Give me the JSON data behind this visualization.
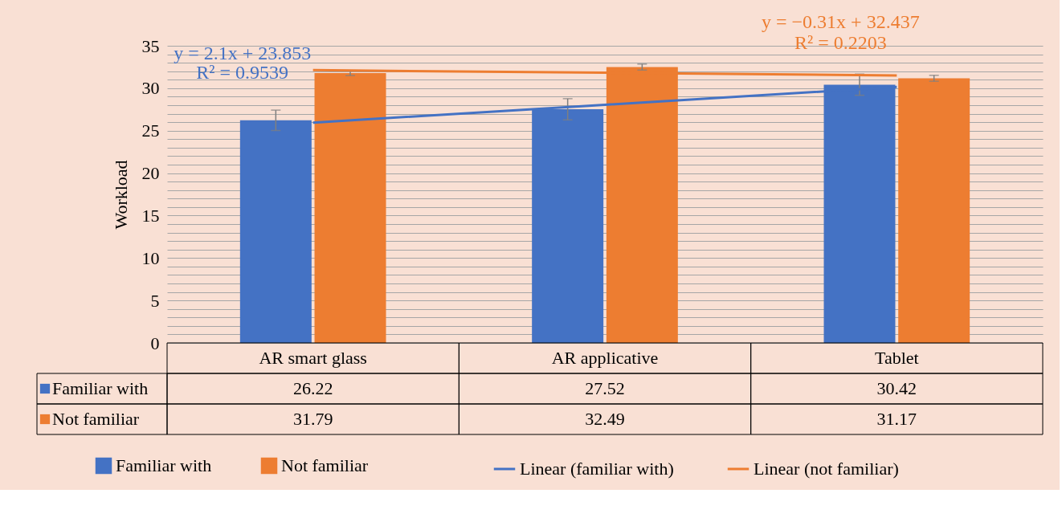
{
  "chart_data": {
    "type": "bar",
    "ylabel": "Workload",
    "categories": [
      "AR smart glass",
      "AR applicative",
      "Tablet"
    ],
    "series": [
      {
        "name": "Familiar with",
        "color": "#4472c4",
        "values": [
          26.22,
          27.52,
          30.42
        ],
        "errors": [
          1.2,
          1.25,
          1.25
        ],
        "value_labels": [
          "26.22",
          "27.52",
          "30.42"
        ]
      },
      {
        "name": "Not familiar",
        "color": "#ed7d31",
        "values": [
          31.79,
          32.49,
          31.17
        ],
        "errors": [
          0.3,
          0.35,
          0.35
        ],
        "value_labels": [
          "31.79",
          "32.49",
          "31.17"
        ]
      },
      {
        "name": "Linear (familiar with)",
        "type": "line",
        "color": "#4472c4",
        "values": [
          25.95,
          28.05,
          30.15
        ]
      },
      {
        "name": "Linear (not familiar)",
        "type": "line",
        "color": "#ed7d31",
        "values": [
          32.13,
          31.82,
          31.51
        ]
      }
    ],
    "ylim": [
      0,
      35
    ],
    "yticks": [
      0,
      {
        "value": 1,
        "label": null
      },
      {
        "value": 2,
        "label": null
      },
      {
        "value": 3,
        "label": null
      },
      {
        "value": 4,
        "label": null
      },
      5,
      {
        "value": 6,
        "label": null
      },
      {
        "value": 7,
        "label": null
      },
      {
        "value": 8,
        "label": null
      },
      {
        "value": 9,
        "label": null
      },
      10,
      {
        "value": 11,
        "label": null
      },
      {
        "value": 12,
        "label": null
      },
      {
        "value": 13,
        "label": null
      },
      {
        "value": 14,
        "label": null
      },
      15,
      {
        "value": 16,
        "label": null
      },
      {
        "value": 17,
        "label": null
      },
      {
        "value": 18,
        "label": null
      },
      {
        "value": 19,
        "label": null
      },
      20,
      {
        "value": 21,
        "label": null
      },
      {
        "value": 22,
        "label": null
      },
      {
        "value": 23,
        "label": null
      },
      {
        "value": 24,
        "label": null
      },
      25,
      {
        "value": 26,
        "label": null
      },
      {
        "value": 27,
        "label": null
      },
      {
        "value": 28,
        "label": null
      },
      {
        "value": 29,
        "label": null
      },
      30,
      {
        "value": 31,
        "label": null
      },
      {
        "value": 32,
        "label": null
      },
      {
        "value": 33,
        "label": null
      },
      {
        "value": 34,
        "label": null
      },
      35
    ],
    "grid": true,
    "legend": "bottom",
    "annotations": [
      "y = 2.1x + 23.853",
      "R² = 0.9539",
      "y = −0.31x + 32.437",
      "R² = 0.2203"
    ]
  }
}
